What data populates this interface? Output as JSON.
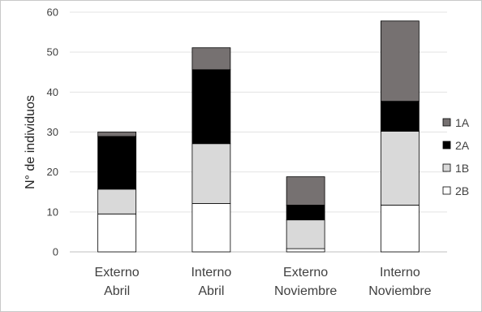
{
  "chart_data": {
    "type": "bar",
    "stacked": true,
    "title": "",
    "xlabel": "",
    "ylabel": "N° de individuos",
    "ylim": [
      0,
      60
    ],
    "yticks": [
      "0",
      "10",
      "20",
      "30",
      "40",
      "50",
      "60"
    ],
    "grid": true,
    "legend_position": "right",
    "categories": [
      [
        "Externo",
        "Abril"
      ],
      [
        "Interno",
        "Abril"
      ],
      [
        "Externo",
        "Noviembre"
      ],
      [
        "Interno",
        "Noviembre"
      ]
    ],
    "series": [
      {
        "name": "2B",
        "color": "#ffffff",
        "values": [
          9.5,
          12.1,
          0.8,
          11.7
        ]
      },
      {
        "name": "1B",
        "color": "#d9d9d9",
        "values": [
          6.2,
          15.0,
          7.2,
          18.5
        ]
      },
      {
        "name": "2A",
        "color": "#000000",
        "values": [
          13.2,
          18.5,
          3.7,
          7.5
        ]
      },
      {
        "name": "1A",
        "color": "#767171",
        "values": [
          1.1,
          5.5,
          7.1,
          20.1
        ]
      }
    ],
    "legend_order": [
      "1A",
      "2A",
      "1B",
      "2B"
    ]
  }
}
